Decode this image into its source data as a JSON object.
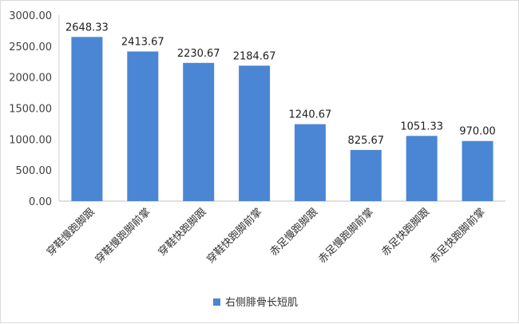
{
  "chart_data": {
    "type": "bar",
    "categories": [
      "穿鞋慢跑脚跟",
      "穿鞋慢跑脚前掌",
      "穿鞋快跑脚跟",
      "穿鞋快跑脚前掌",
      "赤足慢跑脚跟",
      "赤足慢跑脚前掌",
      "赤足快跑脚跟",
      "赤足快跑脚前掌"
    ],
    "series": [
      {
        "name": "右侧腓骨长短肌",
        "values": [
          2648.33,
          2413.67,
          2230.67,
          2184.67,
          1240.67,
          825.67,
          1051.33,
          970.0
        ],
        "color": "#4a86d4"
      }
    ],
    "data_labels": [
      "2648.33",
      "2413.67",
      "2230.67",
      "2184.67",
      "1240.67",
      "825.67",
      "1051.33",
      "970.00"
    ],
    "yticks": [
      "0.00",
      "500.00",
      "1000.00",
      "1500.00",
      "2000.00",
      "2500.00",
      "3000.00"
    ],
    "ylim": [
      0,
      3000
    ],
    "grid": false,
    "legend_position": "bottom"
  }
}
